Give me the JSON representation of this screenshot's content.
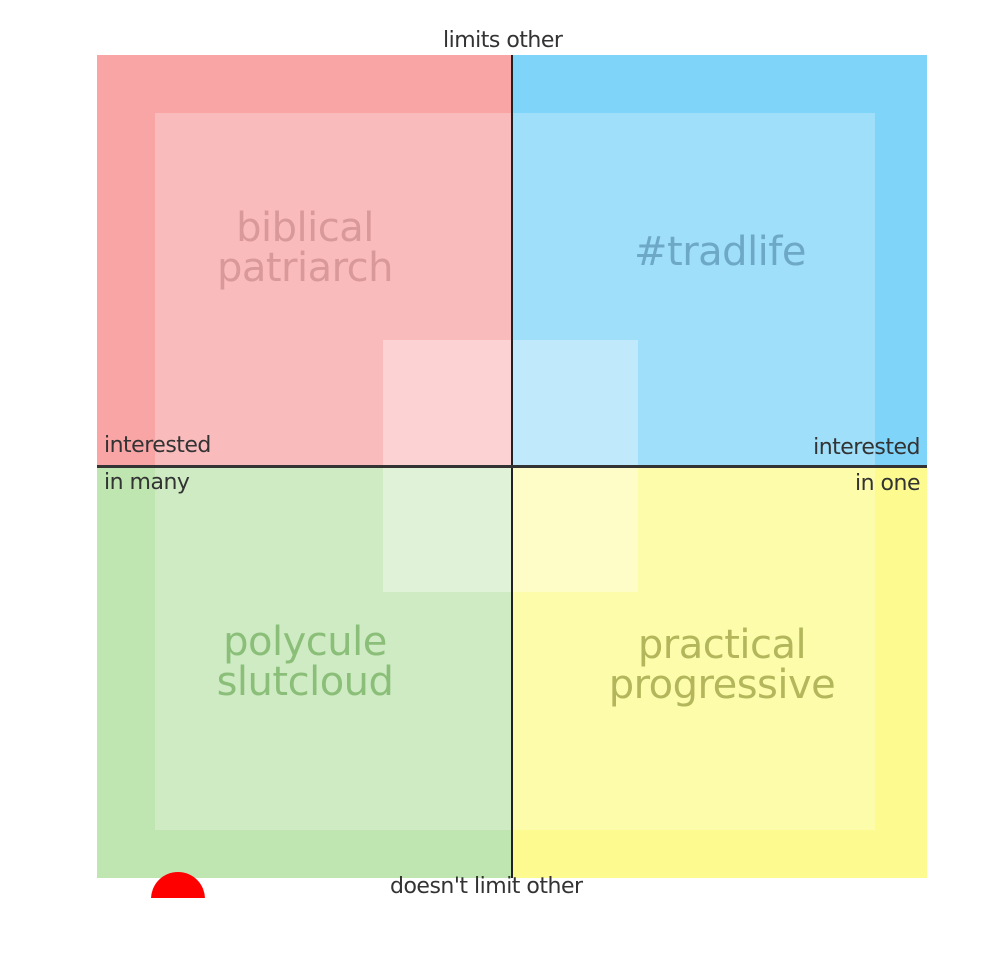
{
  "axes": {
    "top": "limits other",
    "bottom": "doesn't limit other",
    "left_line1": "interested",
    "left_line2": "in many",
    "right_line1": "interested",
    "right_line2": "in one"
  },
  "quadrants": {
    "top_left": {
      "label_line1": "biblical",
      "label_line2": "patriarch",
      "color": "#f9a5a6",
      "text_color": "#d9999b"
    },
    "top_right": {
      "label_line1": "#tradlife",
      "label_line2": "",
      "color": "#7fd4f9",
      "text_color": "#6ea8c7"
    },
    "bottom_left": {
      "label_line1": "polycule",
      "label_line2": "slutcloud",
      "color": "#bfe5b0",
      "text_color": "#8bbf79"
    },
    "bottom_right": {
      "label_line1": "practical",
      "label_line2": "progressive",
      "color": "#fdfb8f",
      "text_color": "#b3b65b"
    }
  },
  "marker": {
    "color": "#ff0000"
  }
}
